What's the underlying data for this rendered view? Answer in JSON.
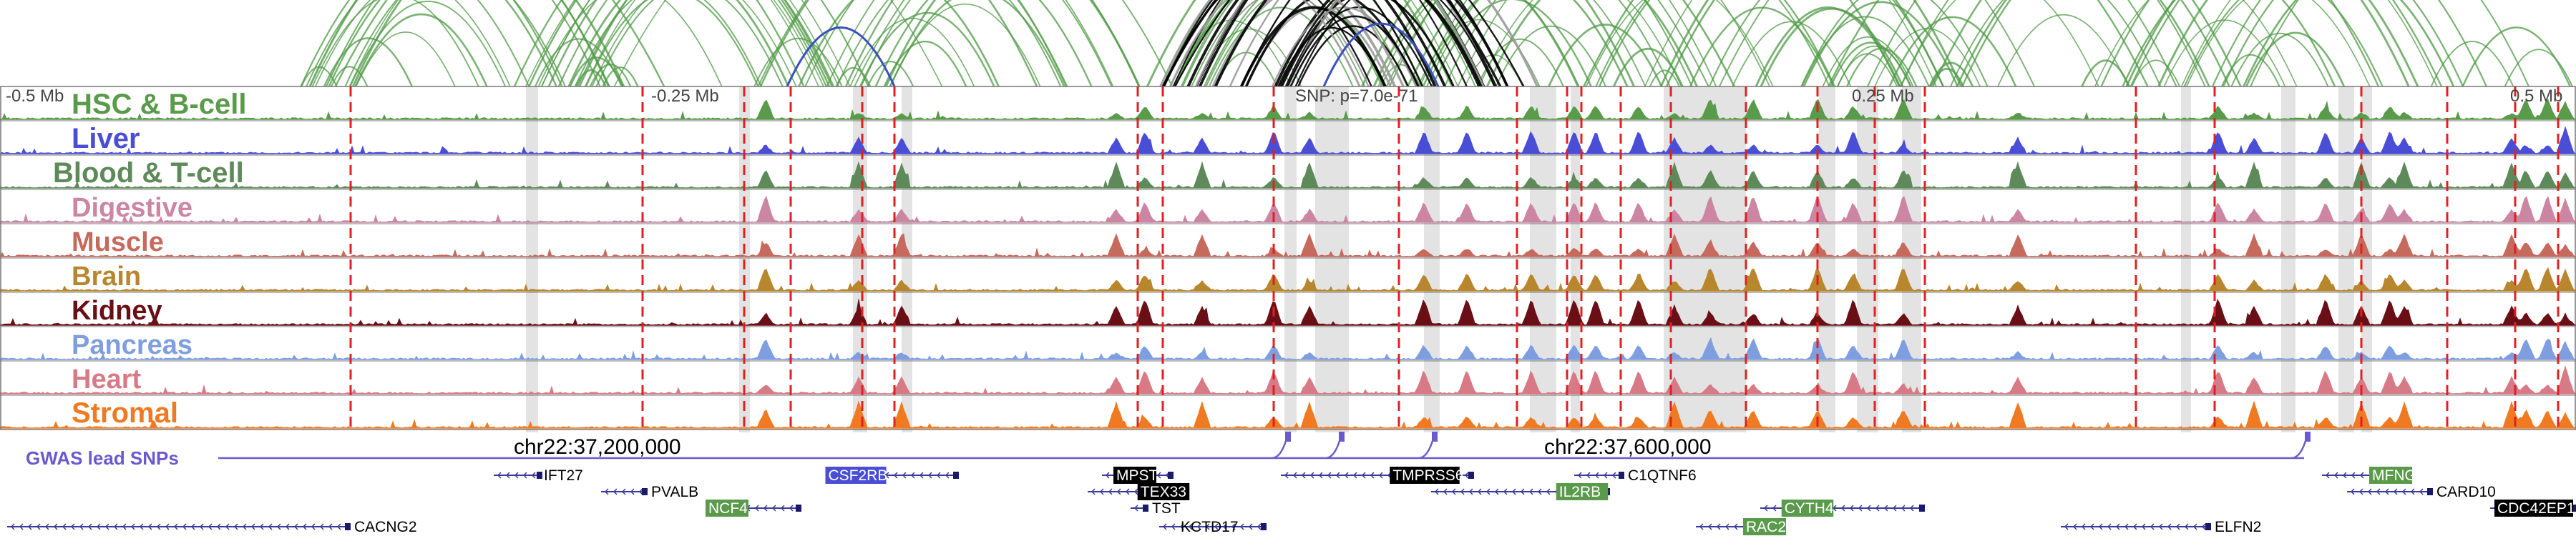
{
  "scale": {
    "left": "-0.5 Mb",
    "mid_left": "-0.25 Mb",
    "mid_right": "0.25 Mb",
    "right": "0.5 Mb"
  },
  "snp_label": "SNP: p=7.0e-71",
  "tracks": [
    {
      "name": "HSC & B-cell",
      "color": "#5a9a4b"
    },
    {
      "name": "Liver",
      "color": "#4a4ed6"
    },
    {
      "name": "Blood & T-cell",
      "color": "#5e8a5a"
    },
    {
      "name": "Digestive",
      "color": "#cc85a3"
    },
    {
      "name": "Muscle",
      "color": "#c66a5e"
    },
    {
      "name": "Brain",
      "color": "#b8862c"
    },
    {
      "name": "Kidney",
      "color": "#6b0f17"
    },
    {
      "name": "Pancreas",
      "color": "#7f9ee0"
    },
    {
      "name": "Heart",
      "color": "#d77a86"
    },
    {
      "name": "Stromal",
      "color": "#f07a22"
    }
  ],
  "gwas_label": "GWAS lead SNPs",
  "coords": {
    "left": "chr22:37,200,000",
    "right": "chr22:37,600,000"
  },
  "genes": [
    {
      "name": "IFT27",
      "style": "plain"
    },
    {
      "name": "PVALB",
      "style": "plain"
    },
    {
      "name": "CSF2RB",
      "style": "blue"
    },
    {
      "name": "NCF4",
      "style": "green"
    },
    {
      "name": "CACNG2",
      "style": "plain"
    },
    {
      "name": "MPST",
      "style": "black"
    },
    {
      "name": "TEX33",
      "style": "black"
    },
    {
      "name": "TST",
      "style": "plain"
    },
    {
      "name": "KCTD17",
      "style": "plain"
    },
    {
      "name": "TMPRSS6",
      "style": "black"
    },
    {
      "name": "IL2RB",
      "style": "green"
    },
    {
      "name": "C1QTNF6",
      "style": "plain"
    },
    {
      "name": "CYTH4",
      "style": "green"
    },
    {
      "name": "RAC2",
      "style": "green"
    },
    {
      "name": "ELFN2",
      "style": "plain"
    },
    {
      "name": "MFNG",
      "style": "green"
    },
    {
      "name": "CARD10",
      "style": "plain"
    },
    {
      "name": "CDC42EP1",
      "style": "black"
    }
  ],
  "colors": {
    "loop_green": "#4f9a45",
    "loop_black": "#000000",
    "loop_blue": "#3a4fc0",
    "loop_gray": "#9a9a9a",
    "peak_line": "#e02020",
    "highlight": "#d9d9d9",
    "gwas": "#6a5acd"
  }
}
